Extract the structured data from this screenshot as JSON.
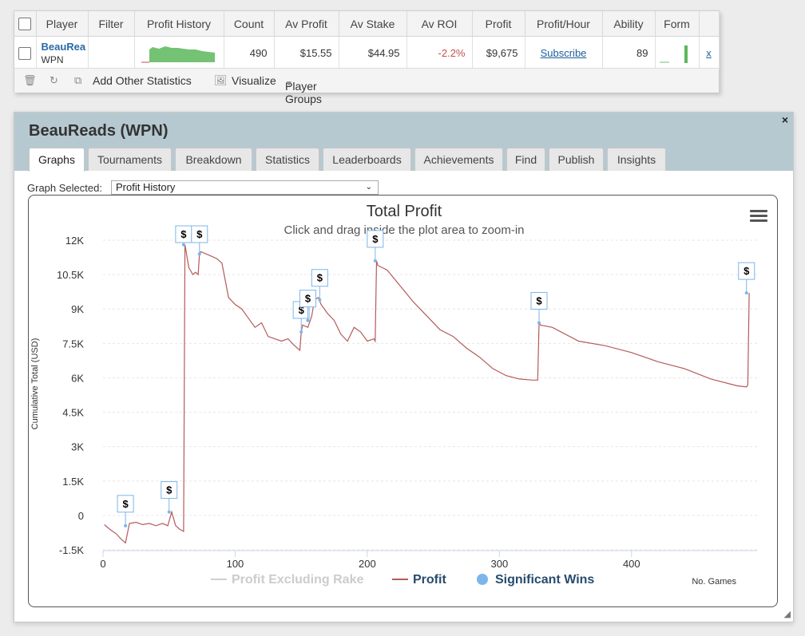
{
  "grid": {
    "headers": [
      "Player",
      "Filter",
      "Profit History",
      "Count",
      "Av Profit",
      "Av Stake",
      "Av ROI",
      "Profit",
      "Profit/Hour",
      "Ability",
      "Form"
    ],
    "row": {
      "player": "BeauRea",
      "network": "WPN",
      "count": "490",
      "av_profit": "$15.55",
      "av_stake": "$44.95",
      "av_roi": "-2.2%",
      "profit": "$9,675",
      "profit_hour": "Subscribe",
      "ability": "89",
      "remove": "x"
    }
  },
  "toolbar": {
    "add_stats": "Add Other Statistics",
    "visualize": "Visualize",
    "player_groups": "Player Groups"
  },
  "panel": {
    "title": "BeauReads (WPN)",
    "close": "×",
    "tabs": [
      "Graphs",
      "Tournaments",
      "Breakdown",
      "Statistics",
      "Leaderboards",
      "Achievements",
      "Find",
      "Publish",
      "Insights"
    ],
    "active_tab": "Graphs",
    "graph_selected_label": "Graph Selected:",
    "graph_selected_value": "Profit History"
  },
  "chart_data": {
    "type": "line",
    "title": "Total Profit",
    "subtitle": "Click and drag inside the plot area to zoom-in",
    "ylabel": "Cumulative Total (USD)",
    "xlabel": "No. Games",
    "ylim": [
      -1500,
      12000
    ],
    "xlim": [
      0,
      495
    ],
    "y_ticks": [
      -1500,
      0,
      1500,
      3000,
      4500,
      6000,
      7500,
      9000,
      10500,
      12000
    ],
    "y_tick_labels": [
      "-1.5K",
      "0",
      "1.5K",
      "3K",
      "4.5K",
      "6K",
      "7.5K",
      "9K",
      "10.5K",
      "12K"
    ],
    "x_ticks": [
      0,
      100,
      200,
      300,
      400
    ],
    "x_tick_labels": [
      "0",
      "100",
      "200",
      "300",
      "400"
    ],
    "grid": true,
    "legend": [
      {
        "name": "Profit Excluding Rake",
        "color": "#cfcfcf",
        "kind": "line"
      },
      {
        "name": "Profit",
        "color": "#b55a5a",
        "kind": "line"
      },
      {
        "name": "Significant Wins",
        "color": "#7cb5ec",
        "kind": "marker"
      }
    ],
    "series": [
      {
        "name": "Profit",
        "x": [
          1,
          5,
          10,
          14,
          17,
          20,
          25,
          30,
          35,
          40,
          45,
          49,
          52,
          55,
          58,
          61,
          62,
          65,
          68,
          70,
          72,
          73,
          74,
          78,
          82,
          86,
          90,
          95,
          100,
          105,
          110,
          115,
          120,
          125,
          130,
          135,
          140,
          145,
          149,
          150,
          151,
          155,
          158,
          160,
          163,
          165,
          170,
          175,
          180,
          185,
          190,
          195,
          200,
          205,
          206,
          207,
          208,
          215,
          225,
          235,
          245,
          255,
          265,
          275,
          285,
          295,
          305,
          315,
          325,
          329,
          330,
          331,
          340,
          360,
          380,
          400,
          420,
          440,
          460,
          480,
          487,
          488,
          489
        ],
        "values": [
          -400,
          -600,
          -800,
          -1050,
          -1200,
          -350,
          -300,
          -400,
          -350,
          -450,
          -350,
          -450,
          150,
          -450,
          -600,
          -700,
          11800,
          10800,
          10500,
          10600,
          10500,
          11400,
          11500,
          11400,
          11300,
          11200,
          11000,
          9500,
          9200,
          9000,
          8600,
          8200,
          8400,
          7800,
          7700,
          7600,
          7700,
          7400,
          7200,
          8000,
          8300,
          8200,
          8700,
          9400,
          9500,
          9200,
          8800,
          8500,
          7900,
          7600,
          8200,
          8000,
          7600,
          7700,
          7600,
          11100,
          10900,
          10700,
          10000,
          9300,
          8700,
          8100,
          7800,
          7300,
          6900,
          6400,
          6100,
          5950,
          5900,
          5900,
          8400,
          8300,
          8200,
          7600,
          7400,
          7100,
          6700,
          6400,
          5950,
          5650,
          5600,
          5700,
          9700
        ]
      }
    ],
    "significant_wins": {
      "x": [
        17,
        50,
        61,
        73,
        150,
        155,
        164,
        206,
        330,
        487
      ],
      "values": [
        -450,
        150,
        11800,
        11400,
        8000,
        8500,
        9400,
        11100,
        8400,
        9700
      ],
      "label": "$"
    }
  }
}
